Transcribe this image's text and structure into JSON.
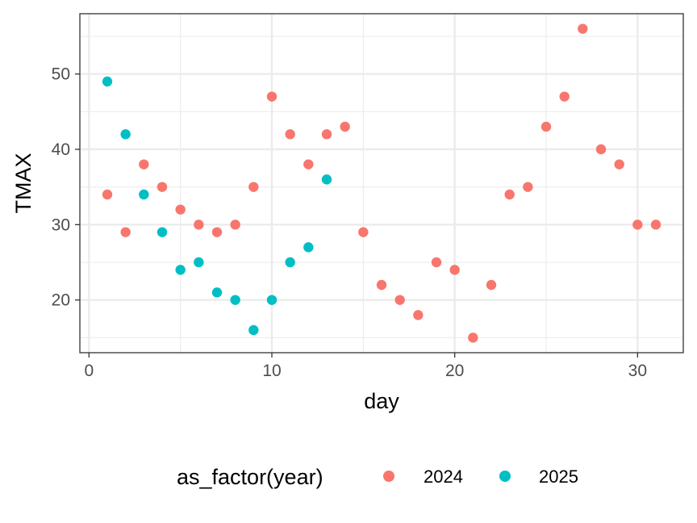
{
  "chart_data": {
    "type": "scatter",
    "xlabel": "day",
    "ylabel": "TMAX",
    "xlim": [
      -0.5,
      32.5
    ],
    "ylim": [
      13.0,
      58.0
    ],
    "x_ticks": [
      0,
      10,
      20,
      30
    ],
    "y_ticks": [
      20,
      30,
      40,
      50
    ],
    "grid": true,
    "legend": {
      "title": "as_factor(year)",
      "position": "bottom"
    },
    "series": [
      {
        "name": "2024",
        "color": "#F8766D",
        "points": [
          [
            1,
            34
          ],
          [
            2,
            29
          ],
          [
            3,
            38
          ],
          [
            4,
            35
          ],
          [
            5,
            32
          ],
          [
            6,
            30
          ],
          [
            7,
            29
          ],
          [
            8,
            30
          ],
          [
            9,
            35
          ],
          [
            10,
            47
          ],
          [
            11,
            42
          ],
          [
            12,
            38
          ],
          [
            13,
            42
          ],
          [
            14,
            43
          ],
          [
            15,
            29
          ],
          [
            16,
            22
          ],
          [
            17,
            20
          ],
          [
            18,
            18
          ],
          [
            19,
            25
          ],
          [
            20,
            24
          ],
          [
            21,
            15
          ],
          [
            22,
            22
          ],
          [
            23,
            34
          ],
          [
            24,
            35
          ],
          [
            25,
            43
          ],
          [
            26,
            47
          ],
          [
            27,
            56
          ],
          [
            28,
            40
          ],
          [
            29,
            38
          ],
          [
            30,
            30
          ],
          [
            31,
            30
          ]
        ]
      },
      {
        "name": "2025",
        "color": "#00BFC4",
        "points": [
          [
            1,
            49
          ],
          [
            2,
            42
          ],
          [
            3,
            34
          ],
          [
            4,
            29
          ],
          [
            5,
            24
          ],
          [
            6,
            25
          ],
          [
            7,
            21
          ],
          [
            8,
            20
          ],
          [
            9,
            16
          ],
          [
            10,
            20
          ],
          [
            11,
            25
          ],
          [
            12,
            27
          ],
          [
            13,
            36
          ]
        ]
      }
    ]
  }
}
